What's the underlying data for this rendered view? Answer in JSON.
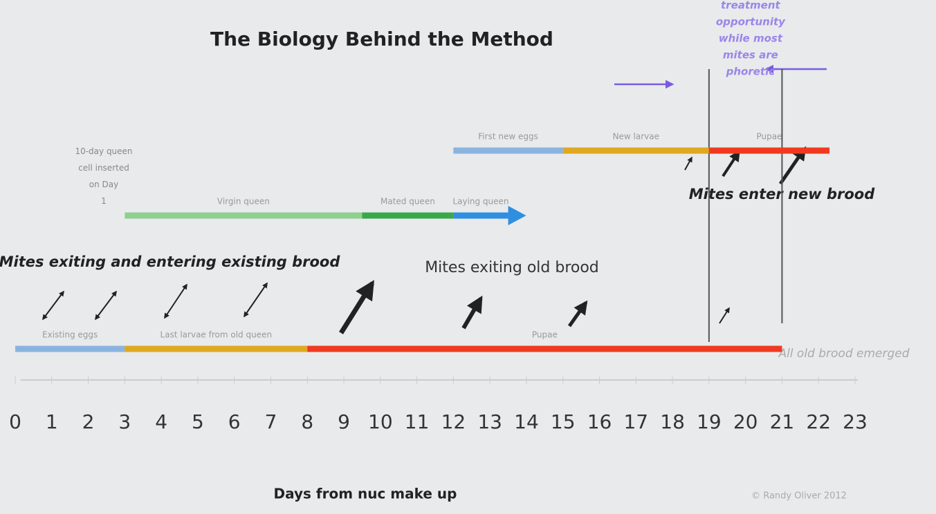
{
  "title": "The Biology Behind the Method",
  "queen_note": "10-day queen cell inserted on Day 1",
  "treatment_note": [
    "treatment",
    "opportunity",
    "while most",
    "mites are",
    "phoretic"
  ],
  "new_brood_note": "Mites enter new brood",
  "existing_brood_note": "Mites exiting and entering existing brood",
  "old_brood_note": "Mites exiting old brood",
  "emerged_note": "All old brood emerged",
  "tracks": {
    "queen": [
      {
        "label": "Virgin queen",
        "color": "#8fcf8f",
        "start": 3,
        "end": 9.5
      },
      {
        "label": "Mated queen",
        "color": "#3aa84a",
        "start": 9.5,
        "end": 12
      },
      {
        "label": "Laying queen",
        "color": "#2e8fe0",
        "start": 12,
        "end": 13.5
      }
    ],
    "new_brood": [
      {
        "label": "First new eggs",
        "color": "#8ab4e0",
        "start": 12,
        "end": 15
      },
      {
        "label": "New larvae",
        "color": "#e0a820",
        "start": 15,
        "end": 19
      },
      {
        "label": "Pupae",
        "color": "#f03a20",
        "start": 19,
        "end": 22.3
      }
    ],
    "old_brood": [
      {
        "label": "Existing eggs",
        "color": "#8ab4e0",
        "start": 0,
        "end": 3
      },
      {
        "label": "Last larvae from old queen",
        "color": "#e0a820",
        "start": 3,
        "end": 8
      },
      {
        "label": "Pupae",
        "color": "#f03a20",
        "start": 8,
        "end": 21
      }
    ]
  },
  "window": [
    19,
    21
  ],
  "days": [
    0,
    1,
    2,
    3,
    4,
    5,
    6,
    7,
    8,
    9,
    10,
    11,
    12,
    13,
    14,
    15,
    16,
    17,
    18,
    19,
    20,
    21,
    22,
    23
  ],
  "axis_label": "Days from nuc make up",
  "credit": "© Randy Oliver 2012"
}
